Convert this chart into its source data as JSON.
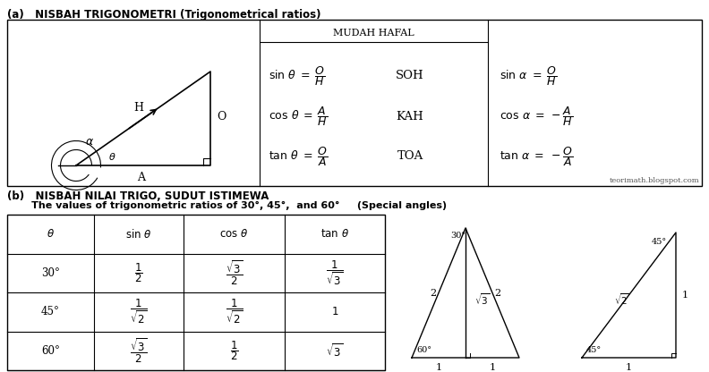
{
  "title_a": "(a)   NISBAH TRIGONOMETRI (Trigonometrical ratios)",
  "title_b_line1": "(b)   NISBAH NILAI TRIGO, SUDUT ISTIMEWA",
  "title_b_line2": "       The values of trigonometric ratios of 30°, 45°,  and 60°     (Special angles)",
  "mudah_hafal": "MUDAH HAFAL",
  "soh": "SOH",
  "kah": "KAH",
  "toa": "TOA",
  "website": "teorimath.blogspot.com",
  "bg_color": "#ffffff"
}
